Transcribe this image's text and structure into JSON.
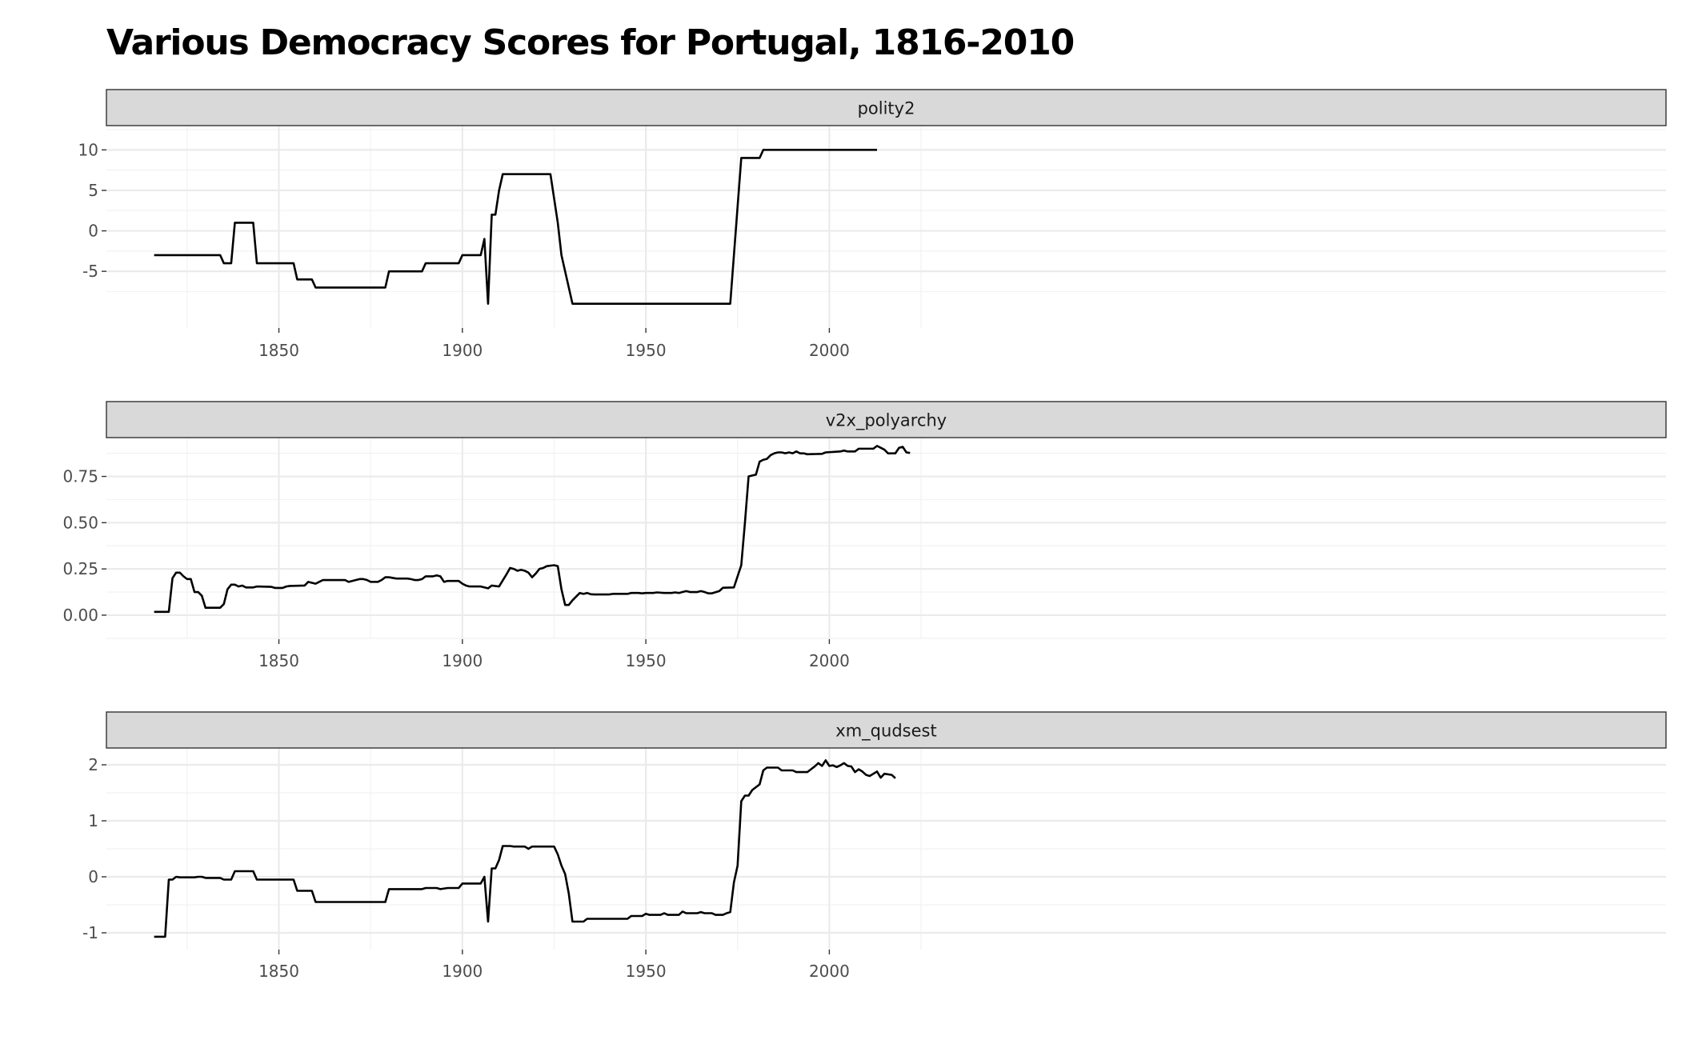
{
  "title": "Various Democracy Scores for Portugal, 1816-2010",
  "chart_data": {
    "type": "line",
    "facet_layout": "stacked-vertical",
    "grid": true,
    "xlim": [
      1803,
      2228
    ],
    "x_ticks": [
      1850,
      1900,
      1950,
      2000
    ],
    "panels": [
      {
        "label": "polity2",
        "ylim": [
          -12,
          13
        ],
        "y_ticks": [
          10,
          5,
          0,
          -5
        ],
        "y_tick_labels": [
          "10",
          "5",
          "0",
          "-5"
        ],
        "points": [
          [
            1816,
            -3
          ],
          [
            1828,
            -3
          ],
          [
            1834,
            -3
          ],
          [
            1835,
            -4
          ],
          [
            1837,
            -4
          ],
          [
            1838,
            1
          ],
          [
            1843,
            1
          ],
          [
            1844,
            -4
          ],
          [
            1854,
            -4
          ],
          [
            1855,
            -6
          ],
          [
            1859,
            -6
          ],
          [
            1860,
            -7
          ],
          [
            1879,
            -7
          ],
          [
            1880,
            -5
          ],
          [
            1889,
            -5
          ],
          [
            1890,
            -4
          ],
          [
            1899,
            -4
          ],
          [
            1900,
            -3
          ],
          [
            1905,
            -3
          ],
          [
            1906,
            -1
          ],
          [
            1907,
            -9
          ],
          [
            1908,
            2
          ],
          [
            1909,
            2
          ],
          [
            1910,
            5
          ],
          [
            1911,
            7
          ],
          [
            1924,
            7
          ],
          [
            1926,
            1
          ],
          [
            1927,
            -3
          ],
          [
            1930,
            -9
          ],
          [
            1973,
            -9
          ],
          [
            1976,
            9
          ],
          [
            1981,
            9
          ],
          [
            1982,
            10
          ],
          [
            2013,
            10
          ]
        ]
      },
      {
        "label": "v2x_polyarchy",
        "ylim": [
          -0.13,
          0.96
        ],
        "y_ticks": [
          0.75,
          0.5,
          0.25,
          0
        ],
        "y_tick_labels": [
          "0.75",
          "0.50",
          "0.25",
          "0.00"
        ],
        "points": [
          [
            1816,
            0.018
          ],
          [
            1820,
            0.018
          ],
          [
            1821,
            0.2
          ],
          [
            1822,
            0.23
          ],
          [
            1823,
            0.23
          ],
          [
            1824,
            0.21
          ],
          [
            1825,
            0.195
          ],
          [
            1826,
            0.195
          ],
          [
            1827,
            0.125
          ],
          [
            1828,
            0.125
          ],
          [
            1829,
            0.105
          ],
          [
            1830,
            0.04
          ],
          [
            1834,
            0.04
          ],
          [
            1835,
            0.06
          ],
          [
            1836,
            0.14
          ],
          [
            1837,
            0.165
          ],
          [
            1838,
            0.165
          ],
          [
            1839,
            0.155
          ],
          [
            1840,
            0.16
          ],
          [
            1841,
            0.15
          ],
          [
            1843,
            0.15
          ],
          [
            1844,
            0.155
          ],
          [
            1848,
            0.153
          ],
          [
            1849,
            0.147
          ],
          [
            1851,
            0.147
          ],
          [
            1852,
            0.155
          ],
          [
            1853,
            0.158
          ],
          [
            1857,
            0.16
          ],
          [
            1858,
            0.18
          ],
          [
            1859,
            0.175
          ],
          [
            1860,
            0.17
          ],
          [
            1861,
            0.18
          ],
          [
            1862,
            0.19
          ],
          [
            1868,
            0.19
          ],
          [
            1869,
            0.18
          ],
          [
            1871,
            0.19
          ],
          [
            1872,
            0.195
          ],
          [
            1873,
            0.195
          ],
          [
            1874,
            0.19
          ],
          [
            1875,
            0.18
          ],
          [
            1877,
            0.18
          ],
          [
            1878,
            0.19
          ],
          [
            1879,
            0.205
          ],
          [
            1880,
            0.205
          ],
          [
            1882,
            0.198
          ],
          [
            1885,
            0.198
          ],
          [
            1886,
            0.195
          ],
          [
            1887,
            0.19
          ],
          [
            1888,
            0.19
          ],
          [
            1889,
            0.195
          ],
          [
            1890,
            0.21
          ],
          [
            1892,
            0.21
          ],
          [
            1893,
            0.215
          ],
          [
            1894,
            0.21
          ],
          [
            1895,
            0.18
          ],
          [
            1896,
            0.185
          ],
          [
            1899,
            0.185
          ],
          [
            1900,
            0.17
          ],
          [
            1901,
            0.16
          ],
          [
            1902,
            0.155
          ],
          [
            1905,
            0.155
          ],
          [
            1906,
            0.15
          ],
          [
            1907,
            0.145
          ],
          [
            1908,
            0.16
          ],
          [
            1910,
            0.155
          ],
          [
            1912,
            0.22
          ],
          [
            1913,
            0.255
          ],
          [
            1914,
            0.25
          ],
          [
            1915,
            0.24
          ],
          [
            1916,
            0.245
          ],
          [
            1917,
            0.24
          ],
          [
            1918,
            0.23
          ],
          [
            1919,
            0.205
          ],
          [
            1920,
            0.225
          ],
          [
            1921,
            0.25
          ],
          [
            1922,
            0.255
          ],
          [
            1923,
            0.265
          ],
          [
            1925,
            0.27
          ],
          [
            1926,
            0.265
          ],
          [
            1927,
            0.14
          ],
          [
            1928,
            0.055
          ],
          [
            1929,
            0.055
          ],
          [
            1930,
            0.08
          ],
          [
            1931,
            0.1
          ],
          [
            1932,
            0.12
          ],
          [
            1933,
            0.115
          ],
          [
            1934,
            0.12
          ],
          [
            1935,
            0.113
          ],
          [
            1936,
            0.112
          ],
          [
            1940,
            0.112
          ],
          [
            1941,
            0.115
          ],
          [
            1945,
            0.115
          ],
          [
            1946,
            0.12
          ],
          [
            1948,
            0.12
          ],
          [
            1949,
            0.118
          ],
          [
            1950,
            0.12
          ],
          [
            1952,
            0.12
          ],
          [
            1953,
            0.123
          ],
          [
            1955,
            0.12
          ],
          [
            1957,
            0.12
          ],
          [
            1958,
            0.123
          ],
          [
            1959,
            0.12
          ],
          [
            1960,
            0.125
          ],
          [
            1961,
            0.13
          ],
          [
            1962,
            0.125
          ],
          [
            1964,
            0.125
          ],
          [
            1965,
            0.13
          ],
          [
            1966,
            0.125
          ],
          [
            1967,
            0.118
          ],
          [
            1968,
            0.118
          ],
          [
            1970,
            0.13
          ],
          [
            1971,
            0.148
          ],
          [
            1974,
            0.15
          ],
          [
            1975,
            0.21
          ],
          [
            1976,
            0.27
          ],
          [
            1977,
            0.5
          ],
          [
            1978,
            0.75
          ],
          [
            1979,
            0.755
          ],
          [
            1980,
            0.76
          ],
          [
            1981,
            0.83
          ],
          [
            1982,
            0.84
          ],
          [
            1983,
            0.845
          ],
          [
            1984,
            0.865
          ],
          [
            1985,
            0.875
          ],
          [
            1986,
            0.88
          ],
          [
            1987,
            0.88
          ],
          [
            1988,
            0.875
          ],
          [
            1989,
            0.88
          ],
          [
            1990,
            0.875
          ],
          [
            1991,
            0.885
          ],
          [
            1992,
            0.875
          ],
          [
            1993,
            0.875
          ],
          [
            1994,
            0.87
          ],
          [
            1998,
            0.872
          ],
          [
            1999,
            0.88
          ],
          [
            2003,
            0.885
          ],
          [
            2004,
            0.89
          ],
          [
            2005,
            0.885
          ],
          [
            2007,
            0.885
          ],
          [
            2008,
            0.9
          ],
          [
            2009,
            0.9
          ],
          [
            2012,
            0.9
          ],
          [
            2013,
            0.915
          ],
          [
            2014,
            0.905
          ],
          [
            2015,
            0.895
          ],
          [
            2016,
            0.875
          ],
          [
            2018,
            0.875
          ],
          [
            2019,
            0.905
          ],
          [
            2020,
            0.91
          ],
          [
            2021,
            0.88
          ],
          [
            2022,
            0.877
          ]
        ]
      },
      {
        "label": "xm_qudsest",
        "ylim": [
          -1.3,
          2.3
        ],
        "y_ticks": [
          2,
          1,
          0,
          -1
        ],
        "y_tick_labels": [
          "2",
          "1",
          "0",
          "-1"
        ],
        "points": [
          [
            1816,
            -1.07
          ],
          [
            1819,
            -1.07
          ],
          [
            1820,
            -0.05
          ],
          [
            1821,
            -0.05
          ],
          [
            1822,
            0
          ],
          [
            1823,
            -0.01
          ],
          [
            1827,
            -0.01
          ],
          [
            1828,
            0
          ],
          [
            1829,
            0
          ],
          [
            1830,
            -0.02
          ],
          [
            1834,
            -0.02
          ],
          [
            1835,
            -0.05
          ],
          [
            1837,
            -0.05
          ],
          [
            1838,
            0.1
          ],
          [
            1843,
            0.1
          ],
          [
            1844,
            -0.05
          ],
          [
            1854,
            -0.05
          ],
          [
            1855,
            -0.25
          ],
          [
            1859,
            -0.25
          ],
          [
            1860,
            -0.45
          ],
          [
            1879,
            -0.45
          ],
          [
            1880,
            -0.22
          ],
          [
            1889,
            -0.22
          ],
          [
            1890,
            -0.2
          ],
          [
            1893,
            -0.2
          ],
          [
            1894,
            -0.22
          ],
          [
            1896,
            -0.2
          ],
          [
            1899,
            -0.2
          ],
          [
            1900,
            -0.12
          ],
          [
            1905,
            -0.12
          ],
          [
            1906,
            0
          ],
          [
            1907,
            -0.8
          ],
          [
            1908,
            0.15
          ],
          [
            1909,
            0.15
          ],
          [
            1910,
            0.3
          ],
          [
            1911,
            0.55
          ],
          [
            1913,
            0.55
          ],
          [
            1914,
            0.54
          ],
          [
            1917,
            0.54
          ],
          [
            1918,
            0.5
          ],
          [
            1919,
            0.54
          ],
          [
            1925,
            0.54
          ],
          [
            1926,
            0.4
          ],
          [
            1927,
            0.2
          ],
          [
            1928,
            0.05
          ],
          [
            1929,
            -0.3
          ],
          [
            1930,
            -0.8
          ],
          [
            1933,
            -0.8
          ],
          [
            1934,
            -0.75
          ],
          [
            1945,
            -0.75
          ],
          [
            1946,
            -0.7
          ],
          [
            1949,
            -0.7
          ],
          [
            1950,
            -0.66
          ],
          [
            1951,
            -0.68
          ],
          [
            1954,
            -0.68
          ],
          [
            1955,
            -0.65
          ],
          [
            1956,
            -0.68
          ],
          [
            1959,
            -0.68
          ],
          [
            1960,
            -0.62
          ],
          [
            1961,
            -0.65
          ],
          [
            1964,
            -0.65
          ],
          [
            1965,
            -0.63
          ],
          [
            1966,
            -0.65
          ],
          [
            1968,
            -0.65
          ],
          [
            1969,
            -0.68
          ],
          [
            1971,
            -0.68
          ],
          [
            1972,
            -0.65
          ],
          [
            1973,
            -0.63
          ],
          [
            1974,
            -0.1
          ],
          [
            1975,
            0.2
          ],
          [
            1976,
            1.35
          ],
          [
            1977,
            1.45
          ],
          [
            1978,
            1.45
          ],
          [
            1979,
            1.55
          ],
          [
            1980,
            1.6
          ],
          [
            1981,
            1.65
          ],
          [
            1982,
            1.9
          ],
          [
            1983,
            1.95
          ],
          [
            1986,
            1.95
          ],
          [
            1987,
            1.9
          ],
          [
            1990,
            1.9
          ],
          [
            1991,
            1.87
          ],
          [
            1994,
            1.87
          ],
          [
            1995,
            1.92
          ],
          [
            1996,
            1.97
          ],
          [
            1997,
            2.03
          ],
          [
            1998,
            1.98
          ],
          [
            1999,
            2.08
          ],
          [
            2000,
            1.98
          ],
          [
            2001,
            1.99
          ],
          [
            2002,
            1.96
          ],
          [
            2003,
            1.99
          ],
          [
            2004,
            2.03
          ],
          [
            2005,
            1.98
          ],
          [
            2006,
            1.97
          ],
          [
            2007,
            1.87
          ],
          [
            2008,
            1.92
          ],
          [
            2009,
            1.88
          ],
          [
            2010,
            1.82
          ],
          [
            2011,
            1.8
          ],
          [
            2012,
            1.84
          ],
          [
            2013,
            1.88
          ],
          [
            2014,
            1.77
          ],
          [
            2015,
            1.84
          ],
          [
            2017,
            1.82
          ],
          [
            2018,
            1.76
          ]
        ]
      }
    ]
  }
}
